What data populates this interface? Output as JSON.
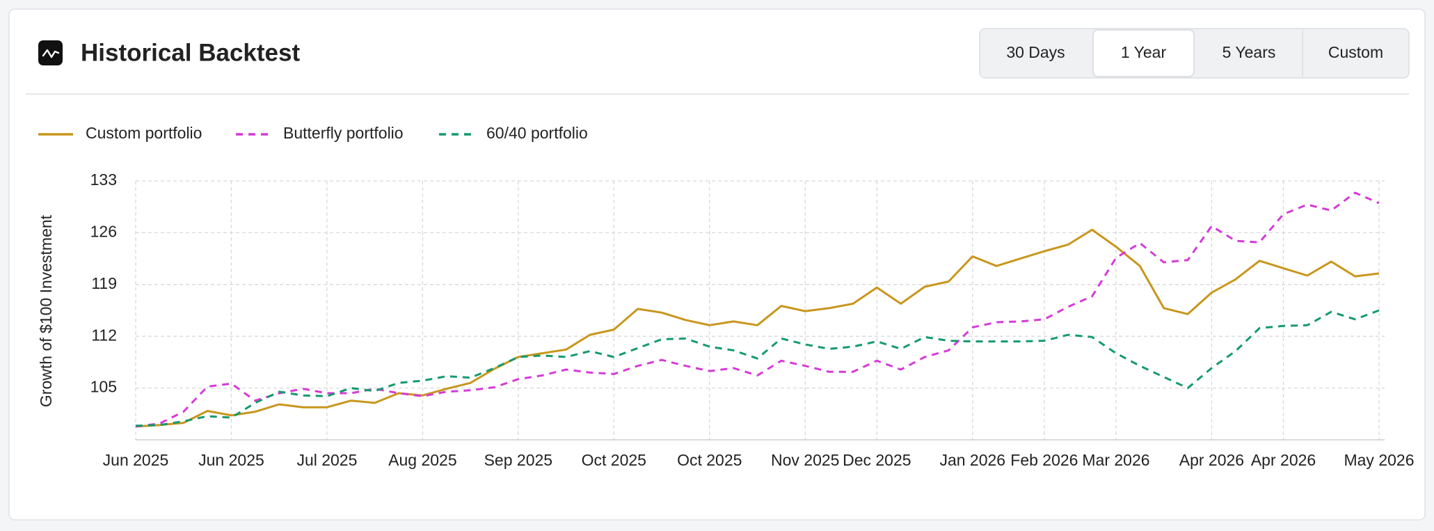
{
  "header": {
    "title": "Historical Backtest",
    "tabs": [
      "30 Days",
      "1 Year",
      "5 Years",
      "Custom"
    ],
    "selected": 1
  },
  "chart_data": {
    "type": "line",
    "ylabel": "Growth of $100 Investment",
    "categories": [
      "Jun 2025",
      null,
      null,
      null,
      "Jun 2025",
      null,
      null,
      null,
      "Jul 2025",
      null,
      null,
      null,
      "Aug 2025",
      null,
      null,
      null,
      "Sep 2025",
      null,
      null,
      null,
      "Oct 2025",
      null,
      null,
      null,
      "Oct 2025",
      null,
      null,
      null,
      "Nov 2025",
      null,
      null,
      "Dec 2025",
      null,
      null,
      null,
      "Jan 2026",
      null,
      null,
      "Feb 2026",
      null,
      null,
      "Mar 2026",
      null,
      null,
      null,
      "Apr 2026",
      null,
      null,
      "Apr 2026",
      null,
      null,
      null,
      "May 2026"
    ],
    "series": [
      {
        "name": "Custom portfolio",
        "color": "#c8961c",
        "dashed": false,
        "values": [
          99.8,
          100.0,
          100.3,
          101.9,
          101.3,
          101.8,
          102.8,
          102.4,
          102.4,
          103.3,
          103.0,
          104.3,
          104.0,
          104.9,
          105.7,
          107.6,
          109.2,
          109.7,
          110.2,
          112.2,
          112.9,
          115.7,
          115.2,
          114.2,
          113.5,
          114.0,
          113.5,
          116.1,
          115.4,
          115.8,
          116.4,
          118.6,
          116.4,
          118.7,
          119.4,
          122.8,
          121.5,
          122.5,
          123.5,
          124.4,
          126.4,
          124.1,
          121.5,
          115.8,
          115.0,
          117.9,
          119.7,
          122.2,
          121.2,
          120.2,
          122.1,
          120.1,
          120.5
        ]
      },
      {
        "name": "Butterfly portfolio",
        "color": "#d63ad9",
        "dashed": true,
        "values": [
          99.8,
          100.2,
          101.8,
          105.2,
          105.6,
          103.3,
          104.3,
          104.9,
          104.3,
          104.3,
          104.9,
          104.3,
          103.9,
          104.5,
          104.7,
          105.1,
          106.2,
          106.7,
          107.5,
          107.1,
          106.9,
          108.0,
          108.8,
          108.0,
          107.3,
          107.7,
          106.7,
          108.7,
          108.0,
          107.2,
          107.2,
          108.7,
          107.5,
          109.2,
          110.1,
          113.2,
          113.9,
          114.0,
          114.3,
          116.0,
          117.4,
          122.6,
          124.6,
          122.0,
          122.3,
          126.9,
          124.9,
          124.7,
          128.5,
          129.8,
          129.0,
          131.4,
          130.0
        ]
      },
      {
        "name": "60/40 portfolio",
        "color": "#139a6e",
        "dashed": true,
        "values": [
          99.9,
          100.0,
          100.5,
          101.2,
          101.0,
          103.0,
          104.5,
          104.0,
          103.9,
          105.0,
          104.6,
          105.7,
          106.0,
          106.6,
          106.4,
          107.7,
          109.2,
          109.4,
          109.2,
          110.0,
          109.2,
          110.4,
          111.6,
          111.7,
          110.6,
          110.1,
          109.0,
          111.7,
          110.9,
          110.3,
          110.6,
          111.3,
          110.3,
          111.9,
          111.4,
          111.3,
          111.3,
          111.3,
          111.4,
          112.2,
          111.9,
          109.7,
          108.0,
          106.5,
          105.0,
          107.7,
          110.0,
          113.1,
          113.4,
          113.5,
          115.3,
          114.3,
          115.5
        ]
      }
    ],
    "ylim": [
      98,
      133
    ],
    "yticks": [
      105,
      112,
      119,
      126,
      133
    ],
    "grid": true
  }
}
